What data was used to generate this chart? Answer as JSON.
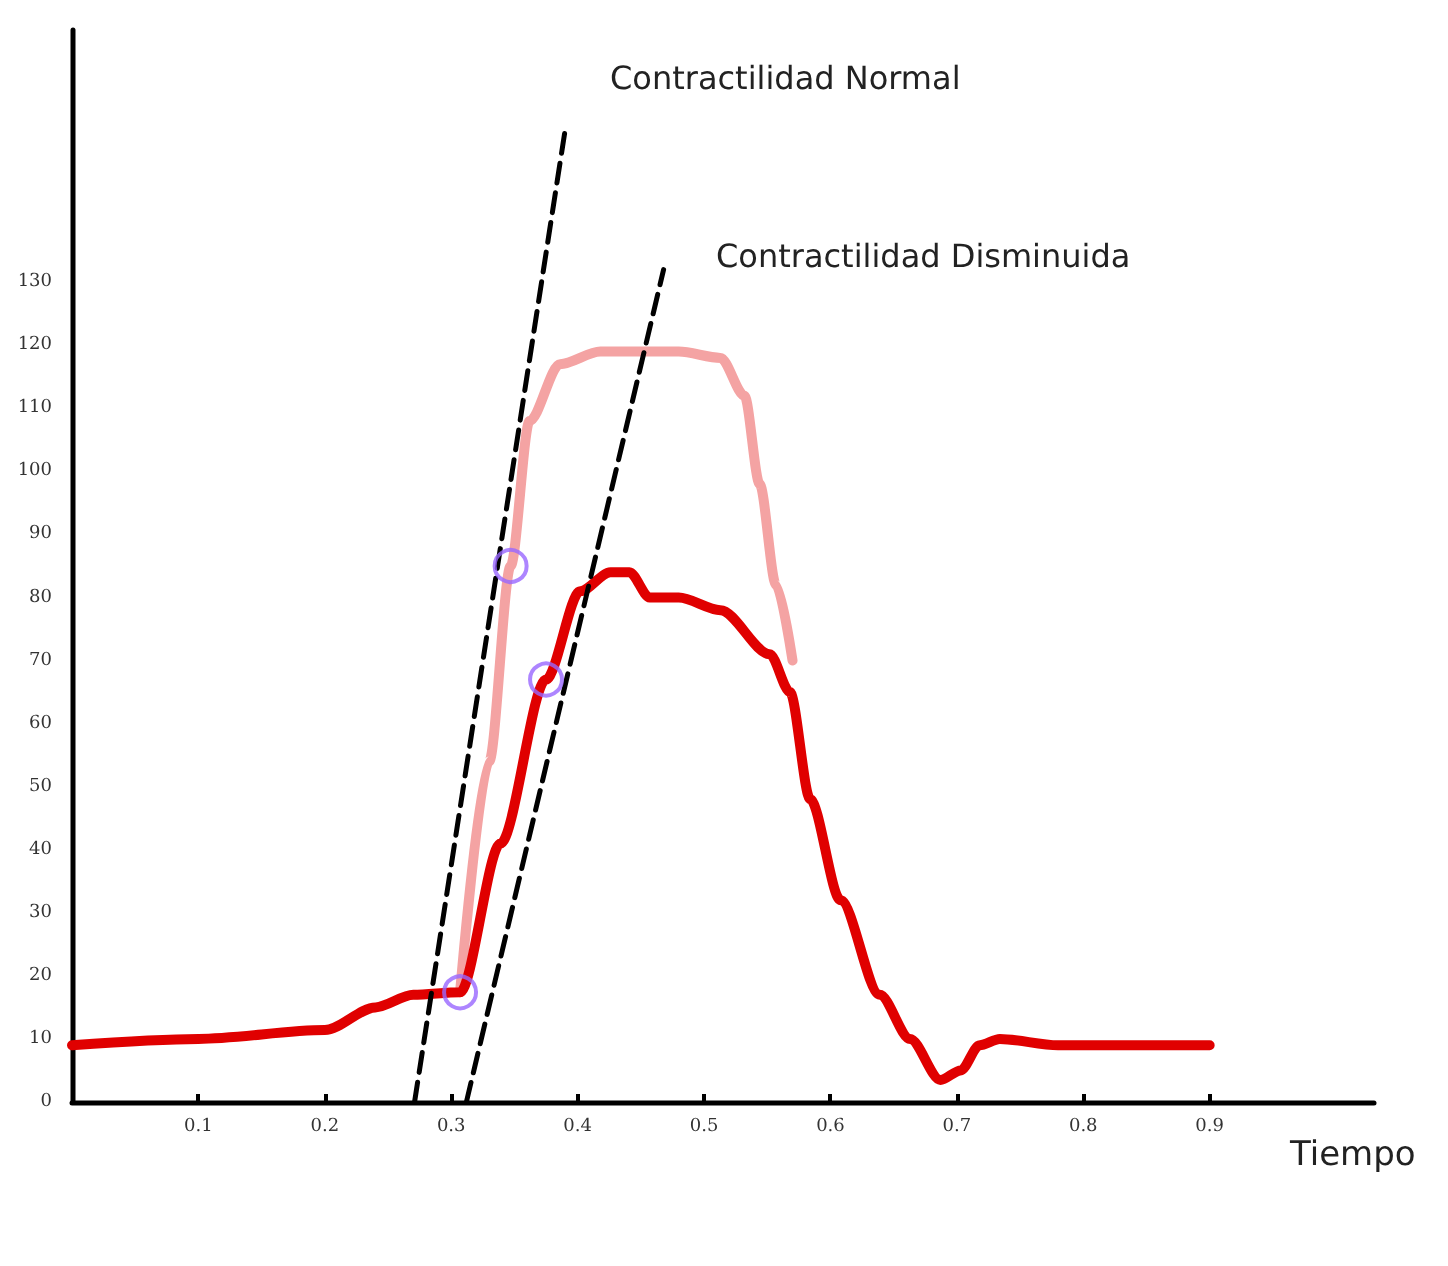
{
  "chart_data": {
    "type": "line",
    "xlabel": "Tiempo",
    "xlim": [
      0,
      1.03
    ],
    "xticks": [
      0.1,
      0.2,
      0.3,
      0.4,
      0.5,
      0.6,
      0.7,
      0.8,
      0.9
    ],
    "ylim": [
      0,
      170
    ],
    "yticks": [
      0,
      10,
      20,
      30,
      40,
      50,
      60,
      70,
      80,
      90,
      100,
      110,
      120,
      130
    ],
    "grid": false,
    "series": [
      {
        "color": "#f4a3a3",
        "marker": "none",
        "line_style": "solid",
        "x": [
          0.307,
          0.33,
          0.347,
          0.362,
          0.386,
          0.418,
          0.48,
          0.513,
          0.532,
          0.544,
          0.557,
          0.57
        ],
        "values": [
          17.4,
          54,
          85,
          108,
          117,
          119,
          119,
          118,
          112,
          98,
          82,
          70
        ]
      },
      {
        "color": "#e00000",
        "marker": "none",
        "line_style": "solid",
        "x": [
          0,
          0.1,
          0.2,
          0.24,
          0.27,
          0.307,
          0.339,
          0.375,
          0.402,
          0.426,
          0.441,
          0.457,
          0.48,
          0.513,
          0.552,
          0.568,
          0.584,
          0.608,
          0.639,
          0.663,
          0.687,
          0.703,
          0.718,
          0.734,
          0.78,
          0.9
        ],
        "values": [
          9,
          10,
          11.4,
          15,
          17,
          17.4,
          41,
          67,
          81,
          84,
          84,
          80,
          80,
          78,
          71,
          65,
          48,
          32,
          17,
          10,
          3.5,
          5,
          9,
          10,
          9,
          9
        ]
      },
      {
        "type": "line",
        "color": "#000000",
        "marker": "none",
        "line_style": "dashed",
        "x": [
          0.271,
          0.39
        ],
        "values": [
          0,
          154
        ]
      },
      {
        "type": "line",
        "color": "#000000",
        "marker": "none",
        "line_style": "dashed",
        "x": [
          0.312,
          0.468
        ],
        "values": [
          0,
          132
        ]
      },
      {
        "type": "scatter",
        "color": "#9966ff",
        "marker": "circle",
        "x": [
          0.307,
          0.347,
          0.375
        ],
        "values": [
          17.4,
          85,
          67
        ]
      }
    ],
    "annotations": [
      "Contractilidad Normal",
      "Contractilidad Disminuida"
    ]
  }
}
